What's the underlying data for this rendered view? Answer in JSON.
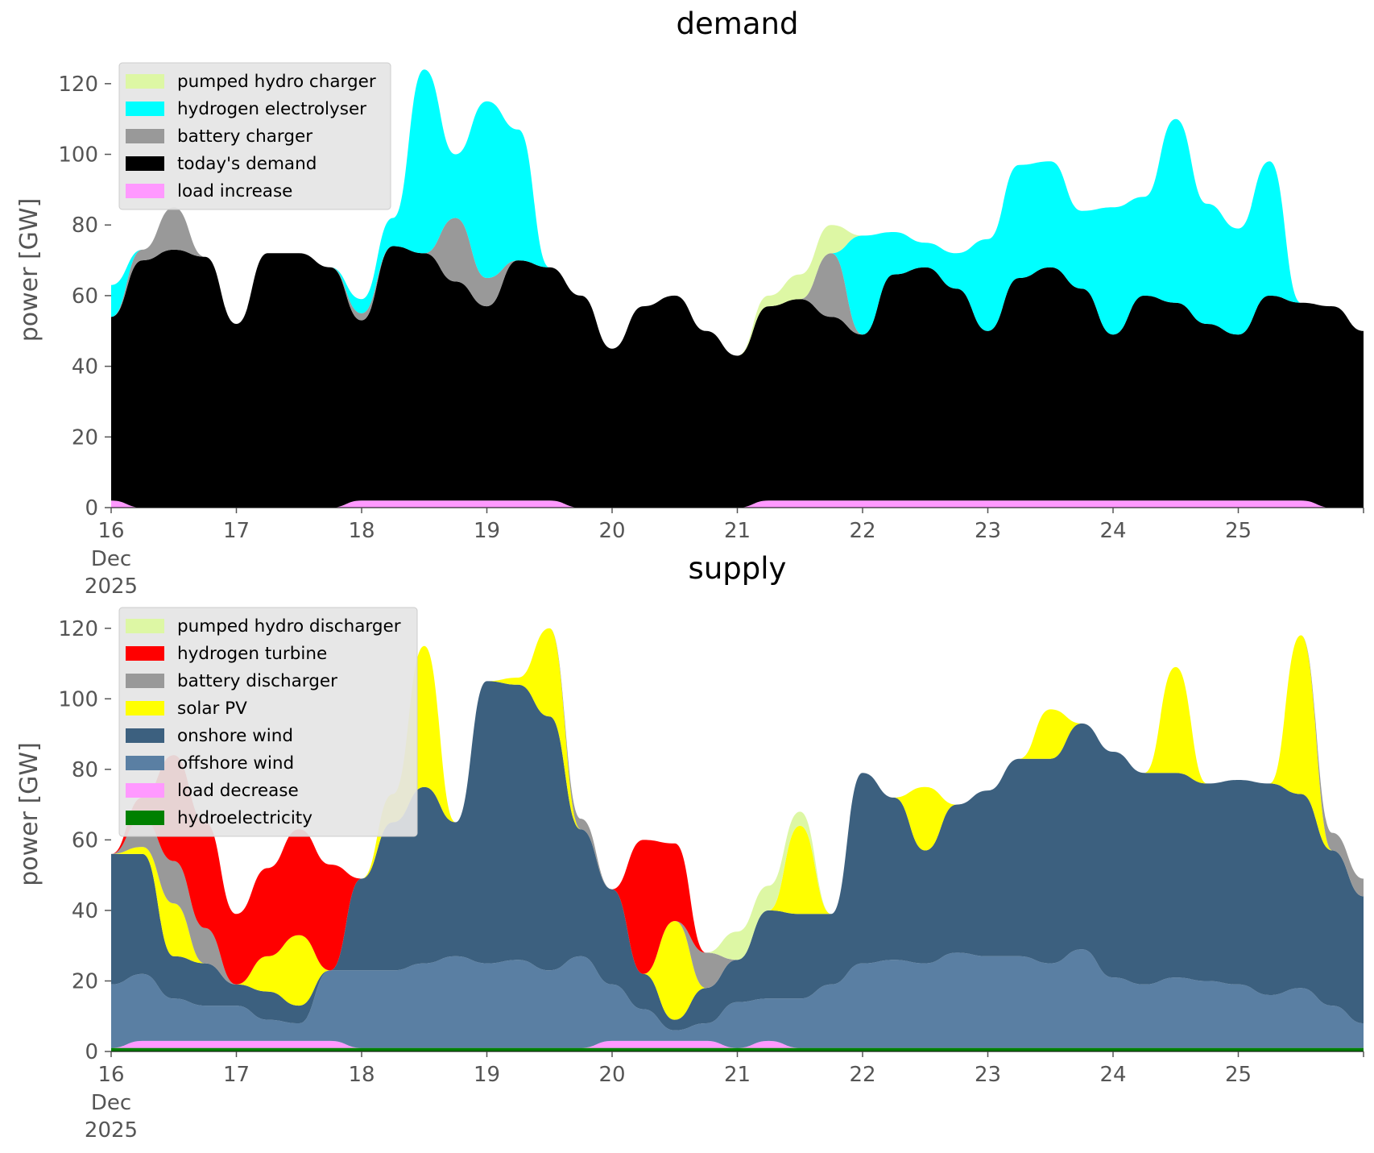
{
  "chart_data": [
    {
      "type": "area",
      "title": "demand",
      "ylabel": "power [GW]",
      "ylim": [
        0,
        130
      ],
      "xlim": [
        "2025-12-16 00:00",
        "2025-12-26 00:00"
      ],
      "x_ticks": [
        {
          "date": "2025-12-16",
          "label": "16",
          "sub": [
            "Dec",
            "2025"
          ]
        },
        {
          "date": "2025-12-17",
          "label": "17"
        },
        {
          "date": "2025-12-18",
          "label": "18"
        },
        {
          "date": "2025-12-19",
          "label": "19"
        },
        {
          "date": "2025-12-20",
          "label": "20"
        },
        {
          "date": "2025-12-21",
          "label": "21"
        },
        {
          "date": "2025-12-22",
          "label": "22"
        },
        {
          "date": "2025-12-23",
          "label": "23"
        },
        {
          "date": "2025-12-24",
          "label": "24"
        },
        {
          "date": "2025-12-25",
          "label": "25"
        }
      ],
      "y_ticks": [
        0,
        20,
        40,
        60,
        80,
        100,
        120
      ],
      "legend_position": "top-left",
      "grid": false,
      "stack_order": "bottom-up (legend lists top-down)",
      "x": [
        "2025-12-16 00:00",
        "2025-12-16 06:00",
        "2025-12-16 12:00",
        "2025-12-16 18:00",
        "2025-12-17 00:00",
        "2025-12-17 06:00",
        "2025-12-17 12:00",
        "2025-12-17 18:00",
        "2025-12-18 00:00",
        "2025-12-18 06:00",
        "2025-12-18 12:00",
        "2025-12-18 18:00",
        "2025-12-19 00:00",
        "2025-12-19 06:00",
        "2025-12-19 12:00",
        "2025-12-19 18:00",
        "2025-12-20 00:00",
        "2025-12-20 06:00",
        "2025-12-20 12:00",
        "2025-12-20 18:00",
        "2025-12-21 00:00",
        "2025-12-21 06:00",
        "2025-12-21 12:00",
        "2025-12-21 18:00",
        "2025-12-22 00:00",
        "2025-12-22 06:00",
        "2025-12-22 12:00",
        "2025-12-22 18:00",
        "2025-12-23 00:00",
        "2025-12-23 06:00",
        "2025-12-23 12:00",
        "2025-12-23 18:00",
        "2025-12-24 00:00",
        "2025-12-24 06:00",
        "2025-12-24 12:00",
        "2025-12-24 18:00",
        "2025-12-25 00:00",
        "2025-12-25 06:00",
        "2025-12-25 12:00",
        "2025-12-25 18:00",
        "2025-12-26 00:00"
      ],
      "series": [
        {
          "name": "load increase",
          "color": "#ff99ff",
          "values": [
            2,
            0,
            0,
            0,
            0,
            0,
            0,
            0,
            2,
            2,
            2,
            2,
            2,
            2,
            2,
            0,
            0,
            0,
            0,
            0,
            0,
            2,
            2,
            2,
            2,
            2,
            2,
            2,
            2,
            2,
            2,
            2,
            2,
            2,
            2,
            2,
            2,
            2,
            2,
            0,
            0
          ]
        },
        {
          "name": "today's demand",
          "color": "#000000",
          "values": [
            52,
            70,
            73,
            71,
            52,
            72,
            72,
            68,
            51,
            72,
            70,
            62,
            55,
            68,
            66,
            60,
            45,
            57,
            60,
            50,
            43,
            55,
            57,
            52,
            47,
            64,
            66,
            60,
            48,
            63,
            66,
            60,
            47,
            58,
            56,
            50,
            47,
            58,
            56,
            57,
            50
          ]
        },
        {
          "name": "battery charger",
          "color": "#999999",
          "values": [
            0,
            3,
            12,
            0,
            0,
            0,
            0,
            0,
            2,
            0,
            0,
            18,
            8,
            0,
            0,
            0,
            0,
            0,
            0,
            0,
            0,
            0,
            0,
            18,
            0,
            0,
            0,
            0,
            0,
            0,
            0,
            0,
            0,
            0,
            0,
            0,
            0,
            0,
            0,
            0,
            0
          ]
        },
        {
          "name": "hydrogen electrolyser",
          "color": "#00ffff",
          "values": [
            9,
            0,
            0,
            0,
            0,
            0,
            0,
            0,
            4,
            8,
            52,
            18,
            50,
            37,
            0,
            0,
            0,
            0,
            0,
            0,
            0,
            0,
            0,
            0,
            28,
            12,
            7,
            10,
            26,
            32,
            30,
            22,
            36,
            28,
            52,
            34,
            30,
            38,
            0,
            0,
            0
          ]
        },
        {
          "name": "pumped hydro charger",
          "color": "#ddf7a4",
          "values": [
            0,
            0,
            0,
            0,
            0,
            0,
            0,
            0,
            0,
            0,
            0,
            0,
            0,
            0,
            0,
            0,
            0,
            0,
            0,
            0,
            0,
            3,
            7,
            8,
            0,
            0,
            0,
            0,
            0,
            0,
            0,
            0,
            0,
            0,
            0,
            0,
            0,
            0,
            0,
            0,
            0
          ]
        }
      ]
    },
    {
      "type": "area",
      "title": "supply",
      "ylabel": "power [GW]",
      "ylim": [
        0,
        130
      ],
      "xlim": [
        "2025-12-16 00:00",
        "2025-12-26 00:00"
      ],
      "x_ticks": [
        {
          "date": "2025-12-16",
          "label": "16",
          "sub": [
            "Dec",
            "2025"
          ]
        },
        {
          "date": "2025-12-17",
          "label": "17"
        },
        {
          "date": "2025-12-18",
          "label": "18"
        },
        {
          "date": "2025-12-19",
          "label": "19"
        },
        {
          "date": "2025-12-20",
          "label": "20"
        },
        {
          "date": "2025-12-21",
          "label": "21"
        },
        {
          "date": "2025-12-22",
          "label": "22"
        },
        {
          "date": "2025-12-23",
          "label": "23"
        },
        {
          "date": "2025-12-24",
          "label": "24"
        },
        {
          "date": "2025-12-25",
          "label": "25"
        }
      ],
      "y_ticks": [
        0,
        20,
        40,
        60,
        80,
        100,
        120
      ],
      "legend_position": "top-left",
      "grid": false,
      "stack_order": "bottom-up (legend lists top-down)",
      "x": [
        "2025-12-16 00:00",
        "2025-12-16 06:00",
        "2025-12-16 12:00",
        "2025-12-16 18:00",
        "2025-12-17 00:00",
        "2025-12-17 06:00",
        "2025-12-17 12:00",
        "2025-12-17 18:00",
        "2025-12-18 00:00",
        "2025-12-18 06:00",
        "2025-12-18 12:00",
        "2025-12-18 18:00",
        "2025-12-19 00:00",
        "2025-12-19 06:00",
        "2025-12-19 12:00",
        "2025-12-19 18:00",
        "2025-12-20 00:00",
        "2025-12-20 06:00",
        "2025-12-20 12:00",
        "2025-12-20 18:00",
        "2025-12-21 00:00",
        "2025-12-21 06:00",
        "2025-12-21 12:00",
        "2025-12-21 18:00",
        "2025-12-22 00:00",
        "2025-12-22 06:00",
        "2025-12-22 12:00",
        "2025-12-22 18:00",
        "2025-12-23 00:00",
        "2025-12-23 06:00",
        "2025-12-23 12:00",
        "2025-12-23 18:00",
        "2025-12-24 00:00",
        "2025-12-24 06:00",
        "2025-12-24 12:00",
        "2025-12-24 18:00",
        "2025-12-25 00:00",
        "2025-12-25 06:00",
        "2025-12-25 12:00",
        "2025-12-25 18:00",
        "2025-12-26 00:00"
      ],
      "series": [
        {
          "name": "hydroelectricity",
          "color": "#008000",
          "values": [
            1,
            1,
            1,
            1,
            1,
            1,
            1,
            1,
            1,
            1,
            1,
            1,
            1,
            1,
            1,
            1,
            1,
            1,
            1,
            1,
            1,
            1,
            1,
            1,
            1,
            1,
            1,
            1,
            1,
            1,
            1,
            1,
            1,
            1,
            1,
            1,
            1,
            1,
            1,
            1,
            1
          ]
        },
        {
          "name": "load decrease",
          "color": "#ff99ff",
          "values": [
            0,
            2,
            2,
            2,
            2,
            2,
            2,
            2,
            0,
            0,
            0,
            0,
            0,
            0,
            0,
            0,
            2,
            2,
            2,
            2,
            0,
            2,
            0,
            0,
            0,
            0,
            0,
            0,
            0,
            0,
            0,
            0,
            0,
            0,
            0,
            0,
            0,
            0,
            0,
            0,
            0
          ]
        },
        {
          "name": "offshore wind",
          "color": "#5a7fa3",
          "values": [
            18,
            19,
            12,
            10,
            10,
            6,
            5,
            20,
            22,
            22,
            24,
            26,
            24,
            25,
            22,
            26,
            16,
            9,
            3,
            5,
            13,
            12,
            14,
            18,
            24,
            25,
            24,
            27,
            26,
            26,
            24,
            28,
            20,
            18,
            20,
            19,
            18,
            15,
            17,
            12,
            7
          ]
        },
        {
          "name": "onshore wind",
          "color": "#3c607f",
          "values": [
            37,
            34,
            12,
            12,
            6,
            8,
            5,
            0,
            26,
            42,
            50,
            38,
            80,
            78,
            72,
            36,
            27,
            10,
            3,
            10,
            12,
            25,
            24,
            20,
            54,
            46,
            32,
            42,
            47,
            56,
            58,
            64,
            64,
            60,
            58,
            56,
            58,
            60,
            55,
            44,
            36
          ]
        },
        {
          "name": "solar PV",
          "color": "#ffff00",
          "values": [
            0,
            2,
            15,
            0,
            0,
            10,
            20,
            0,
            0,
            8,
            40,
            0,
            0,
            2,
            25,
            0,
            0,
            0,
            28,
            0,
            0,
            0,
            25,
            0,
            0,
            0,
            18,
            0,
            0,
            0,
            14,
            0,
            0,
            0,
            30,
            0,
            0,
            0,
            45,
            0,
            0
          ]
        },
        {
          "name": "battery discharger",
          "color": "#999999",
          "values": [
            0,
            8,
            12,
            10,
            0,
            0,
            0,
            0,
            0,
            0,
            0,
            0,
            0,
            0,
            0,
            3,
            0,
            0,
            0,
            10,
            0,
            0,
            0,
            0,
            0,
            0,
            0,
            0,
            0,
            0,
            0,
            0,
            0,
            0,
            0,
            0,
            0,
            0,
            0,
            5,
            5
          ]
        },
        {
          "name": "hydrogen turbine",
          "color": "#ff0000",
          "values": [
            0,
            6,
            30,
            30,
            20,
            25,
            30,
            30,
            0,
            0,
            0,
            0,
            0,
            0,
            0,
            0,
            0,
            38,
            22,
            0,
            0,
            0,
            0,
            0,
            0,
            0,
            0,
            0,
            0,
            0,
            0,
            0,
            0,
            0,
            0,
            0,
            0,
            0,
            0,
            0,
            0
          ]
        },
        {
          "name": "pumped hydro discharger",
          "color": "#ddf7a4",
          "values": [
            0,
            0,
            0,
            0,
            0,
            0,
            0,
            0,
            0,
            0,
            0,
            0,
            0,
            0,
            0,
            0,
            0,
            0,
            0,
            0,
            8,
            7,
            4,
            0,
            0,
            0,
            0,
            0,
            0,
            0,
            0,
            0,
            0,
            0,
            0,
            0,
            0,
            0,
            0,
            0,
            0
          ]
        }
      ]
    }
  ]
}
